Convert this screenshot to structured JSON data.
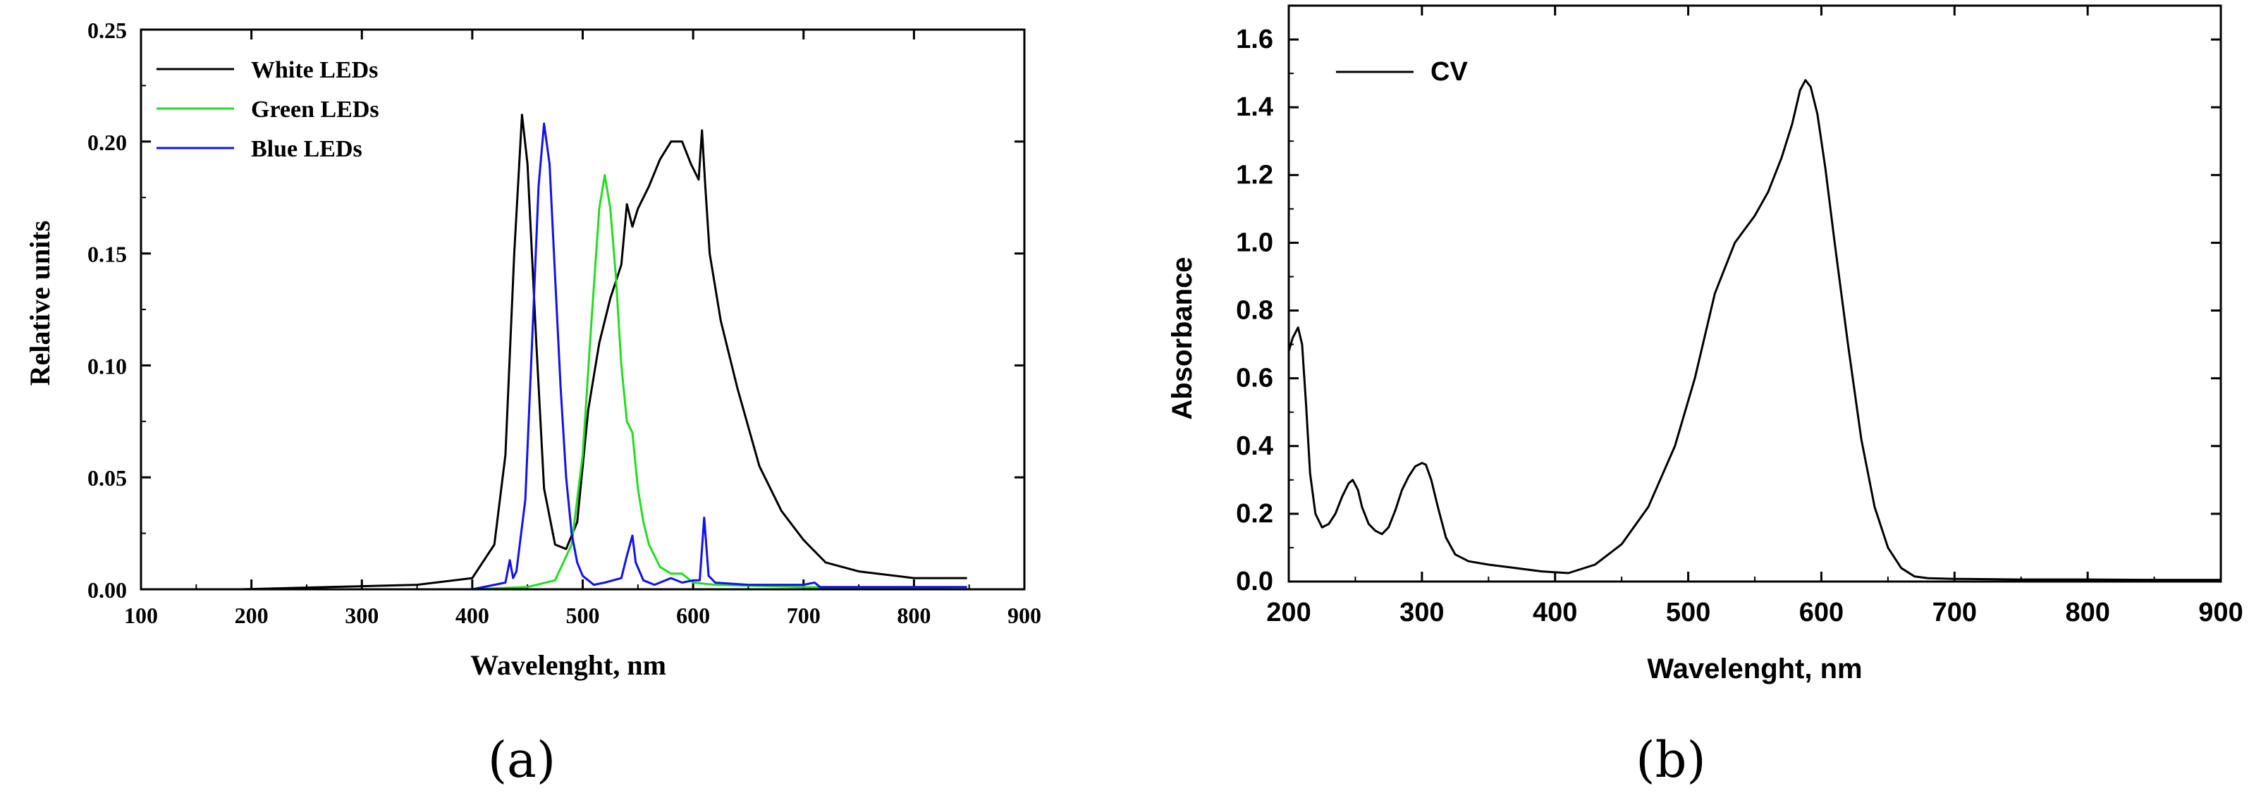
{
  "chart_data": [
    {
      "id": "a",
      "type": "line",
      "panel_label": "(a)",
      "title": "",
      "xlabel": "Wavelenght, nm",
      "ylabel": "Relative units",
      "xlim": [
        100,
        900
      ],
      "ylim": [
        0,
        0.25
      ],
      "xticks": [
        100,
        200,
        300,
        400,
        500,
        600,
        700,
        800,
        900
      ],
      "yticks": [
        0.0,
        0.05,
        0.1,
        0.15,
        0.2,
        0.25
      ],
      "ytick_labels": [
        "0.00",
        "0.05",
        "0.10",
        "0.15",
        "0.20",
        "0.25"
      ],
      "legend_position": "top-left",
      "series": [
        {
          "name": "White LEDs",
          "color": "#000000",
          "x": [
            190,
            270,
            350,
            400,
            420,
            430,
            438,
            445,
            450,
            458,
            465,
            475,
            485,
            495,
            505,
            515,
            525,
            535,
            540,
            545,
            550,
            560,
            570,
            580,
            590,
            598,
            605,
            608,
            611,
            615,
            625,
            640,
            660,
            680,
            700,
            720,
            750,
            800,
            848
          ],
          "y": [
            0.0,
            0.001,
            0.002,
            0.005,
            0.02,
            0.06,
            0.15,
            0.212,
            0.19,
            0.11,
            0.045,
            0.02,
            0.018,
            0.03,
            0.08,
            0.11,
            0.13,
            0.145,
            0.172,
            0.162,
            0.17,
            0.18,
            0.192,
            0.2,
            0.2,
            0.19,
            0.183,
            0.205,
            0.18,
            0.15,
            0.12,
            0.09,
            0.055,
            0.035,
            0.022,
            0.012,
            0.008,
            0.005,
            0.005
          ]
        },
        {
          "name": "Green LEDs",
          "color": "#22dd22",
          "x": [
            185,
            400,
            450,
            475,
            490,
            500,
            508,
            515,
            520,
            525,
            530,
            535,
            540,
            545,
            550,
            555,
            560,
            570,
            580,
            590,
            600,
            620,
            700,
            848
          ],
          "y": [
            0.0,
            0.0,
            0.001,
            0.004,
            0.02,
            0.06,
            0.12,
            0.17,
            0.185,
            0.17,
            0.14,
            0.1,
            0.075,
            0.07,
            0.045,
            0.03,
            0.02,
            0.01,
            0.007,
            0.007,
            0.003,
            0.002,
            0.001,
            0.0
          ]
        },
        {
          "name": "Blue LEDs",
          "color": "#1010ee",
          "x": [
            185,
            400,
            430,
            434,
            437,
            440,
            448,
            455,
            460,
            465,
            470,
            475,
            480,
            485,
            490,
            495,
            500,
            510,
            520,
            535,
            540,
            545,
            548,
            555,
            565,
            580,
            590,
            600,
            606,
            610,
            614,
            620,
            650,
            700,
            710,
            715,
            750,
            848
          ],
          "y": [
            0.0,
            0.0,
            0.003,
            0.013,
            0.005,
            0.008,
            0.04,
            0.12,
            0.18,
            0.208,
            0.19,
            0.14,
            0.09,
            0.05,
            0.025,
            0.012,
            0.006,
            0.002,
            0.003,
            0.005,
            0.015,
            0.024,
            0.012,
            0.004,
            0.002,
            0.005,
            0.003,
            0.004,
            0.004,
            0.032,
            0.006,
            0.003,
            0.002,
            0.002,
            0.003,
            0.001,
            0.001,
            0.001
          ]
        }
      ]
    },
    {
      "id": "b",
      "type": "line",
      "panel_label": "(b)",
      "title": "",
      "xlabel": "Wavelenght, nm",
      "ylabel": "Absorbance",
      "xlim": [
        200,
        900
      ],
      "ylim": [
        0,
        1.7
      ],
      "xticks": [
        200,
        300,
        400,
        500,
        600,
        700,
        800,
        900
      ],
      "yticks": [
        0.0,
        0.2,
        0.4,
        0.6,
        0.8,
        1.0,
        1.2,
        1.4,
        1.6
      ],
      "ytick_labels": [
        "0.0",
        "0.2",
        "0.4",
        "0.6",
        "0.8",
        "1.0",
        "1.2",
        "1.4",
        "1.6"
      ],
      "legend_position": "top-left",
      "series": [
        {
          "name": "CV",
          "color": "#000000",
          "x": [
            200,
            203,
            207,
            210,
            213,
            216,
            220,
            225,
            230,
            235,
            240,
            245,
            248,
            252,
            255,
            260,
            265,
            270,
            275,
            280,
            285,
            290,
            295,
            300,
            303,
            307,
            312,
            318,
            325,
            335,
            350,
            370,
            390,
            410,
            430,
            450,
            470,
            490,
            505,
            520,
            535,
            550,
            560,
            570,
            578,
            584,
            588,
            592,
            597,
            603,
            610,
            620,
            630,
            640,
            650,
            660,
            670,
            680,
            700,
            750,
            800,
            850,
            900
          ],
          "y": [
            0.68,
            0.72,
            0.75,
            0.7,
            0.52,
            0.32,
            0.2,
            0.16,
            0.17,
            0.2,
            0.25,
            0.29,
            0.3,
            0.27,
            0.22,
            0.17,
            0.15,
            0.14,
            0.16,
            0.21,
            0.27,
            0.31,
            0.34,
            0.35,
            0.345,
            0.3,
            0.22,
            0.13,
            0.08,
            0.06,
            0.05,
            0.04,
            0.03,
            0.025,
            0.05,
            0.11,
            0.22,
            0.4,
            0.6,
            0.85,
            1.0,
            1.08,
            1.15,
            1.25,
            1.35,
            1.45,
            1.48,
            1.46,
            1.38,
            1.22,
            1.0,
            0.7,
            0.42,
            0.22,
            0.1,
            0.04,
            0.015,
            0.01,
            0.008,
            0.006,
            0.006,
            0.005,
            0.005
          ]
        }
      ]
    }
  ]
}
